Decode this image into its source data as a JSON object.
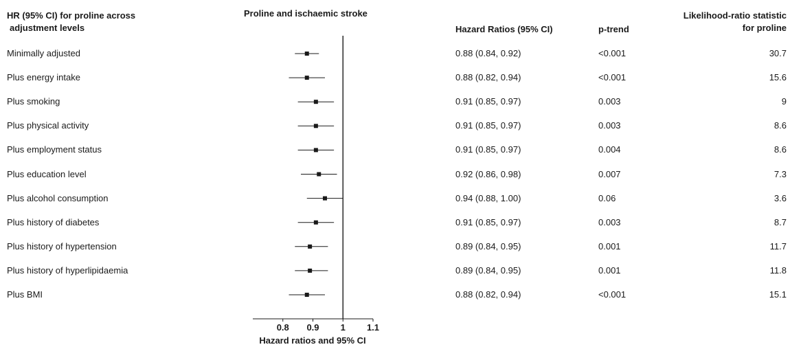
{
  "header": {
    "left_title_line1": "HR (95% CI) for proline across",
    "left_title_line2": "adjustment levels",
    "plot_title": "Proline and ischaemic stroke",
    "hr_header": "Hazard Ratios (95% CI)",
    "ptrend_header": "p-trend",
    "lr_header_line1": "Likelihood-ratio statistic",
    "lr_header_line2": "for proline"
  },
  "rows": [
    {
      "label": "Minimally adjusted",
      "hr_text": "0.88 (0.84, 0.92)",
      "p_trend": "<0.001",
      "lr": "30.7"
    },
    {
      "label": "Plus energy intake",
      "hr_text": "0.88 (0.82, 0.94)",
      "p_trend": "<0.001",
      "lr": "15.6"
    },
    {
      "label": "Plus smoking",
      "hr_text": "0.91 (0.85, 0.97)",
      "p_trend": "0.003",
      "lr": "9"
    },
    {
      "label": "Plus physical activity",
      "hr_text": "0.91 (0.85, 0.97)",
      "p_trend": "0.003",
      "lr": "8.6"
    },
    {
      "label": "Plus employment status",
      "hr_text": "0.91 (0.85, 0.97)",
      "p_trend": "0.004",
      "lr": "8.6"
    },
    {
      "label": "Plus education level",
      "hr_text": "0.92 (0.86, 0.98)",
      "p_trend": "0.007",
      "lr": "7.3"
    },
    {
      "label": "Plus alcohol consumption",
      "hr_text": "0.94 (0.88, 1.00)",
      "p_trend": "0.06",
      "lr": "3.6"
    },
    {
      "label": "Plus history of diabetes",
      "hr_text": "0.91 (0.85, 0.97)",
      "p_trend": "0.003",
      "lr": "8.7"
    },
    {
      "label": "Plus history of hypertension",
      "hr_text": "0.89 (0.84, 0.95)",
      "p_trend": "0.001",
      "lr": "11.7"
    },
    {
      "label": "Plus history of hyperlipidaemia",
      "hr_text": "0.89 (0.84, 0.95)",
      "p_trend": "0.001",
      "lr": "11.8"
    },
    {
      "label": "Plus BMI",
      "hr_text": "0.88 (0.82, 0.94)",
      "p_trend": "<0.001",
      "lr": "15.1"
    }
  ],
  "chart_data": {
    "type": "forest",
    "title": "Proline and ischaemic stroke",
    "xlabel": "Hazard ratios and 95% CI",
    "xlim": [
      0.7,
      1.1
    ],
    "xticks": [
      0.8,
      0.9,
      1,
      1.1
    ],
    "xtick_labels": [
      "0.8",
      "0.9",
      "1",
      "1.1"
    ],
    "reference_line": 1,
    "categories": [
      "Minimally adjusted",
      "Plus energy intake",
      "Plus smoking",
      "Plus physical activity",
      "Plus employment status",
      "Plus education level",
      "Plus alcohol consumption",
      "Plus history of diabetes",
      "Plus history of hypertension",
      "Plus history of hyperlipidaemia",
      "Plus BMI"
    ],
    "hr": [
      0.88,
      0.88,
      0.91,
      0.91,
      0.91,
      0.92,
      0.94,
      0.91,
      0.89,
      0.89,
      0.88
    ],
    "ci_low": [
      0.84,
      0.82,
      0.85,
      0.85,
      0.85,
      0.86,
      0.88,
      0.85,
      0.84,
      0.84,
      0.82
    ],
    "ci_high": [
      0.92,
      0.94,
      0.97,
      0.97,
      0.97,
      0.98,
      1.0,
      0.97,
      0.95,
      0.95,
      0.94
    ],
    "grid": false
  }
}
